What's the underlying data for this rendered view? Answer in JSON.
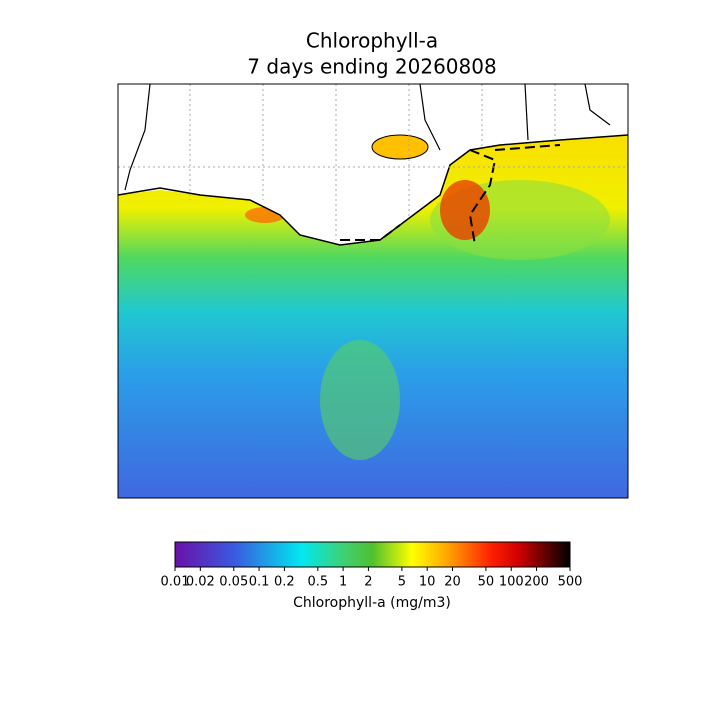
{
  "title": [
    "Chlorophyll-a",
    "7 days ending 20260808"
  ],
  "colorbar": {
    "label": "Chlorophyll-a (mg/m3)",
    "scale": "log",
    "lim": [
      0.01,
      500
    ],
    "ticks": [
      0.01,
      0.02,
      0.05,
      0.1,
      0.2,
      0.5,
      1,
      2,
      5,
      10,
      20,
      50,
      100,
      200,
      500
    ]
  }
}
